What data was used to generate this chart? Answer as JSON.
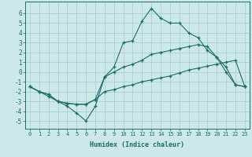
{
  "xlabel": "Humidex (Indice chaleur)",
  "background_color": "#cce8e8",
  "grid_color": "#aad0d0",
  "line_color": "#1a6e6a",
  "xlim": [
    -0.5,
    23.5
  ],
  "ylim": [
    -5.8,
    7.2
  ],
  "xticks": [
    0,
    1,
    2,
    3,
    4,
    5,
    6,
    7,
    8,
    9,
    10,
    11,
    12,
    13,
    14,
    15,
    16,
    17,
    18,
    19,
    20,
    21,
    22,
    23
  ],
  "yticks": [
    -5,
    -4,
    -3,
    -2,
    -1,
    0,
    1,
    2,
    3,
    4,
    5,
    6
  ],
  "line1_x": [
    0,
    1,
    2,
    3,
    4,
    5,
    6,
    7,
    8,
    9,
    10,
    11,
    12,
    13,
    14,
    15,
    16,
    17,
    18,
    19,
    20,
    21,
    22,
    23
  ],
  "line1_y": [
    -1.5,
    -2.0,
    -2.5,
    -3.0,
    -3.5,
    -4.2,
    -5.0,
    -3.5,
    -0.5,
    0.5,
    3.0,
    3.2,
    5.2,
    6.5,
    5.5,
    5.0,
    5.0,
    4.0,
    3.5,
    2.2,
    1.5,
    0.5,
    -1.3,
    -1.5
  ],
  "line2_x": [
    0,
    1,
    2,
    3,
    4,
    5,
    6,
    7,
    8,
    9,
    10,
    11,
    12,
    13,
    14,
    15,
    16,
    17,
    18,
    19,
    20,
    21,
    22,
    23
  ],
  "line2_y": [
    -1.5,
    -2.0,
    -2.3,
    -3.0,
    -3.2,
    -3.3,
    -3.3,
    -2.8,
    -0.5,
    0.0,
    0.5,
    0.8,
    1.2,
    1.8,
    2.0,
    2.2,
    2.4,
    2.6,
    2.8,
    2.6,
    1.5,
    0.0,
    -1.3,
    -1.5
  ],
  "line3_x": [
    0,
    1,
    2,
    3,
    4,
    5,
    6,
    7,
    8,
    9,
    10,
    11,
    12,
    13,
    14,
    15,
    16,
    17,
    18,
    19,
    20,
    21,
    22,
    23
  ],
  "line3_y": [
    -1.5,
    -2.0,
    -2.3,
    -3.0,
    -3.2,
    -3.3,
    -3.3,
    -2.8,
    -2.0,
    -1.8,
    -1.5,
    -1.3,
    -1.0,
    -0.8,
    -0.6,
    -0.4,
    -0.1,
    0.2,
    0.4,
    0.6,
    0.8,
    1.0,
    1.2,
    -1.5
  ]
}
